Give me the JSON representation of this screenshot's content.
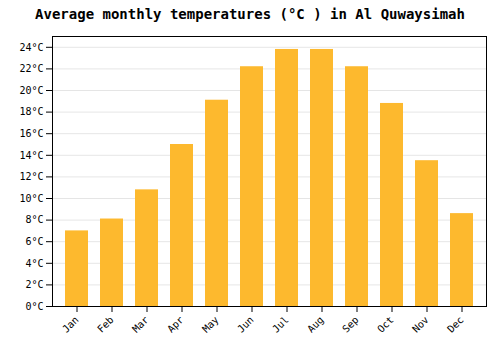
{
  "chart_data": {
    "type": "bar",
    "title": "Average monthly temperatures (°C ) in Al Quwaysimah",
    "categories": [
      "Jan",
      "Feb",
      "Mar",
      "Apr",
      "May",
      "Jun",
      "Jul",
      "Aug",
      "Sep",
      "Oct",
      "Nov",
      "Dec"
    ],
    "values": [
      7.0,
      8.1,
      10.8,
      15.0,
      19.1,
      22.2,
      23.8,
      23.8,
      22.2,
      18.8,
      13.5,
      8.6
    ],
    "color": "#FDB92E",
    "ylim": [
      0,
      25
    ],
    "yticks": [
      {
        "value": 0,
        "label": "0°C"
      },
      {
        "value": 2,
        "label": "2°C"
      },
      {
        "value": 4,
        "label": "4°C"
      },
      {
        "value": 6,
        "label": "6°C"
      },
      {
        "value": 8,
        "label": "8°C"
      },
      {
        "value": 10,
        "label": "10°C"
      },
      {
        "value": 12,
        "label": "12°C"
      },
      {
        "value": 14,
        "label": "14°C"
      },
      {
        "value": 16,
        "label": "16°C"
      },
      {
        "value": 18,
        "label": "18°C"
      },
      {
        "value": 20,
        "label": "20°C"
      },
      {
        "value": 22,
        "label": "22°C"
      },
      {
        "value": 24,
        "label": "24°C"
      }
    ],
    "grid": true
  }
}
